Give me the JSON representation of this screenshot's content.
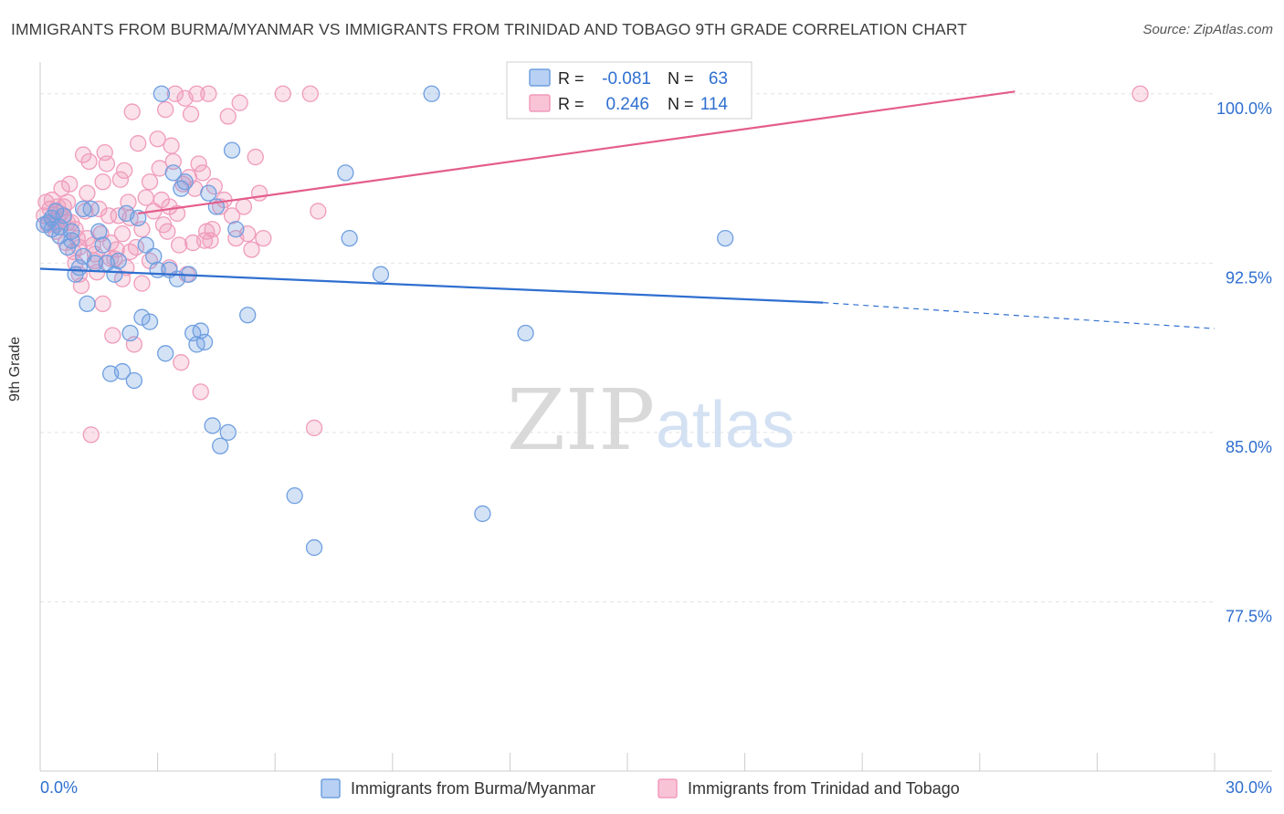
{
  "title": "IMMIGRANTS FROM BURMA/MYANMAR VS IMMIGRANTS FROM TRINIDAD AND TOBAGO 9TH GRADE CORRELATION CHART",
  "source": "Source: ZipAtlas.com",
  "watermark": {
    "zip": "ZIP",
    "atlas": "atlas"
  },
  "chart_data": {
    "type": "scatter",
    "ylabel": "9th Grade",
    "xlim": [
      0,
      30
    ],
    "ylim": [
      70,
      100.9
    ],
    "x_tick_labels": [
      "0.0%",
      "30.0%"
    ],
    "y_ticks": [
      {
        "value": 100.0,
        "label": "100.0%"
      },
      {
        "value": 92.5,
        "label": "92.5%"
      },
      {
        "value": 85.0,
        "label": "85.0%"
      },
      {
        "value": 77.5,
        "label": "77.5%"
      }
    ],
    "legend": {
      "position": "top-center",
      "rows": [
        {
          "r_label": "R =",
          "r_value": "-0.081",
          "n_label": "N =",
          "n_value": "63"
        },
        {
          "r_label": "R =",
          "r_value": "0.246",
          "n_label": "N =",
          "n_value": "114"
        }
      ]
    },
    "bottom_legend": [
      "Immigrants from Burma/Myanmar",
      "Immigrants from Trinidad and Tobago"
    ],
    "series": [
      {
        "name": "Immigrants from Burma/Myanmar",
        "color": "#6f9fe0",
        "line_color": "#2f6fd0",
        "trend": {
          "x0": 0,
          "y0": 92.25,
          "x_solid_end": 20,
          "y_solid_end": 90.75,
          "x1": 30,
          "y1": 89.6
        },
        "points": [
          [
            0.1,
            94.2
          ],
          [
            0.2,
            94.3
          ],
          [
            0.3,
            94.0
          ],
          [
            0.4,
            94.8
          ],
          [
            0.5,
            93.7
          ],
          [
            0.6,
            94.6
          ],
          [
            0.7,
            93.2
          ],
          [
            0.8,
            93.9
          ],
          [
            0.9,
            92.0
          ],
          [
            1.0,
            92.3
          ],
          [
            1.1,
            94.9
          ],
          [
            1.2,
            90.7
          ],
          [
            1.4,
            92.5
          ],
          [
            1.5,
            93.9
          ],
          [
            1.6,
            93.3
          ],
          [
            1.7,
            92.5
          ],
          [
            1.8,
            87.6
          ],
          [
            1.9,
            92.0
          ],
          [
            2.0,
            92.6
          ],
          [
            2.1,
            87.7
          ],
          [
            2.2,
            94.7
          ],
          [
            2.3,
            89.4
          ],
          [
            2.4,
            87.3
          ],
          [
            2.5,
            94.5
          ],
          [
            2.6,
            90.1
          ],
          [
            2.7,
            93.3
          ],
          [
            2.8,
            89.9
          ],
          [
            2.9,
            92.8
          ],
          [
            3.0,
            92.2
          ],
          [
            3.1,
            100.0
          ],
          [
            3.2,
            88.5
          ],
          [
            3.3,
            92.2
          ],
          [
            3.4,
            96.5
          ],
          [
            3.5,
            91.8
          ],
          [
            3.6,
            95.8
          ],
          [
            3.7,
            96.1
          ],
          [
            3.8,
            92.0
          ],
          [
            3.9,
            89.4
          ],
          [
            4.0,
            88.9
          ],
          [
            4.1,
            89.5
          ],
          [
            4.2,
            89.0
          ],
          [
            4.3,
            95.6
          ],
          [
            4.4,
            85.3
          ],
          [
            4.5,
            95.0
          ],
          [
            4.6,
            84.4
          ],
          [
            4.8,
            85.0
          ],
          [
            4.9,
            97.5
          ],
          [
            5.0,
            94.0
          ],
          [
            5.3,
            90.2
          ],
          [
            6.5,
            82.2
          ],
          [
            7.0,
            79.9
          ],
          [
            7.8,
            96.5
          ],
          [
            7.9,
            93.6
          ],
          [
            8.7,
            92.0
          ],
          [
            10.0,
            100.0
          ],
          [
            11.3,
            81.4
          ],
          [
            12.4,
            89.4
          ],
          [
            17.5,
            93.6
          ],
          [
            0.3,
            94.5
          ],
          [
            0.5,
            94.1
          ],
          [
            0.8,
            93.5
          ],
          [
            1.1,
            92.8
          ],
          [
            1.3,
            94.9
          ]
        ]
      },
      {
        "name": "Immigrants from Trinidad and Tobago",
        "color": "#f09bbb",
        "line_color": "#e45d8c",
        "trend": {
          "x0": 2.5,
          "y0": 94.7,
          "x1": 24.9,
          "y1": 100.1
        },
        "points": [
          [
            0.1,
            94.6
          ],
          [
            0.15,
            95.2
          ],
          [
            0.2,
            94.2
          ],
          [
            0.25,
            94.9
          ],
          [
            0.3,
            95.3
          ],
          [
            0.35,
            94.4
          ],
          [
            0.4,
            93.9
          ],
          [
            0.45,
            95.0
          ],
          [
            0.5,
            94.7
          ],
          [
            0.55,
            95.8
          ],
          [
            0.6,
            94.5
          ],
          [
            0.65,
            93.4
          ],
          [
            0.7,
            95.2
          ],
          [
            0.75,
            96.0
          ],
          [
            0.8,
            94.3
          ],
          [
            0.85,
            93.0
          ],
          [
            0.9,
            92.5
          ],
          [
            0.95,
            93.6
          ],
          [
            1.0,
            92.0
          ],
          [
            1.05,
            91.5
          ],
          [
            1.1,
            97.3
          ],
          [
            1.15,
            94.8
          ],
          [
            1.2,
            95.6
          ],
          [
            1.25,
            97.0
          ],
          [
            1.3,
            84.9
          ],
          [
            1.35,
            93.3
          ],
          [
            1.4,
            92.9
          ],
          [
            1.45,
            92.1
          ],
          [
            1.5,
            94.9
          ],
          [
            1.55,
            93.8
          ],
          [
            1.6,
            96.1
          ],
          [
            1.65,
            97.4
          ],
          [
            1.7,
            96.9
          ],
          [
            1.75,
            94.6
          ],
          [
            1.8,
            93.4
          ],
          [
            1.85,
            89.3
          ],
          [
            1.9,
            92.7
          ],
          [
            1.95,
            93.1
          ],
          [
            2.0,
            94.6
          ],
          [
            2.05,
            96.2
          ],
          [
            2.1,
            93.8
          ],
          [
            2.15,
            96.6
          ],
          [
            2.2,
            92.3
          ],
          [
            2.25,
            95.2
          ],
          [
            2.3,
            94.5
          ],
          [
            2.35,
            99.2
          ],
          [
            2.4,
            88.9
          ],
          [
            2.45,
            93.2
          ],
          [
            2.5,
            97.8
          ],
          [
            2.6,
            91.6
          ],
          [
            2.7,
            95.4
          ],
          [
            2.8,
            96.1
          ],
          [
            2.9,
            94.8
          ],
          [
            3.0,
            98.0
          ],
          [
            3.05,
            96.7
          ],
          [
            3.1,
            95.3
          ],
          [
            3.15,
            94.2
          ],
          [
            3.2,
            99.3
          ],
          [
            3.25,
            93.9
          ],
          [
            3.3,
            92.3
          ],
          [
            3.35,
            97.7
          ],
          [
            3.4,
            97.0
          ],
          [
            3.45,
            100.0
          ],
          [
            3.5,
            94.7
          ],
          [
            3.55,
            93.3
          ],
          [
            3.6,
            88.1
          ],
          [
            3.65,
            96.0
          ],
          [
            3.7,
            99.8
          ],
          [
            3.75,
            92.0
          ],
          [
            3.8,
            96.3
          ],
          [
            3.85,
            99.1
          ],
          [
            3.9,
            93.4
          ],
          [
            3.95,
            95.8
          ],
          [
            4.0,
            100.0
          ],
          [
            4.05,
            96.9
          ],
          [
            4.1,
            86.8
          ],
          [
            4.15,
            96.5
          ],
          [
            4.2,
            93.5
          ],
          [
            4.25,
            93.9
          ],
          [
            4.3,
            100.0
          ],
          [
            4.35,
            93.5
          ],
          [
            4.4,
            94.0
          ],
          [
            4.45,
            95.9
          ],
          [
            4.6,
            95.0
          ],
          [
            4.7,
            95.3
          ],
          [
            4.8,
            99.0
          ],
          [
            4.9,
            94.6
          ],
          [
            5.0,
            93.6
          ],
          [
            5.1,
            99.6
          ],
          [
            5.2,
            95.0
          ],
          [
            5.3,
            93.8
          ],
          [
            5.4,
            93.1
          ],
          [
            5.5,
            97.2
          ],
          [
            5.6,
            95.6
          ],
          [
            5.7,
            93.6
          ],
          [
            6.2,
            100.0
          ],
          [
            6.9,
            100.0
          ],
          [
            7.0,
            85.2
          ],
          [
            7.1,
            94.8
          ],
          [
            28.1,
            100.0
          ],
          [
            0.4,
            94.2
          ],
          [
            0.6,
            95.0
          ],
          [
            0.9,
            94.0
          ],
          [
            1.2,
            93.6
          ],
          [
            1.8,
            92.7
          ],
          [
            2.3,
            93.0
          ],
          [
            1.6,
            90.7
          ],
          [
            2.1,
            91.8
          ],
          [
            2.8,
            92.6
          ],
          [
            3.3,
            95.0
          ],
          [
            1.0,
            93.2
          ],
          [
            0.7,
            94.3
          ],
          [
            1.4,
            92.6
          ],
          [
            2.6,
            94.0
          ]
        ]
      }
    ]
  }
}
